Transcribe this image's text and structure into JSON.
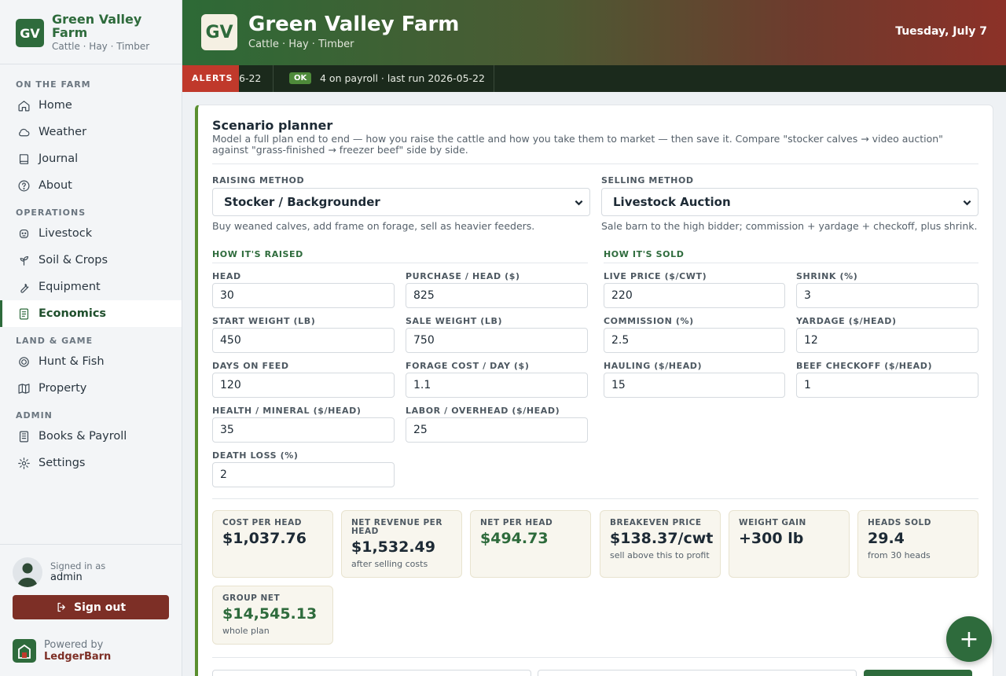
{
  "sidebar": {
    "brand": {
      "logo": "GV",
      "name": "Green Valley Farm",
      "subtitle": "Cattle · Hay · Timber"
    },
    "sections": [
      {
        "heading": "ON THE FARM",
        "items": [
          {
            "label": "Home",
            "icon": "home-icon"
          },
          {
            "label": "Weather",
            "icon": "cloud-icon"
          },
          {
            "label": "Journal",
            "icon": "book-icon"
          },
          {
            "label": "About",
            "icon": "help-circle-icon"
          }
        ]
      },
      {
        "heading": "OPERATIONS",
        "items": [
          {
            "label": "Livestock",
            "icon": "cow-icon"
          },
          {
            "label": "Soil & Crops",
            "icon": "sprout-icon"
          },
          {
            "label": "Equipment",
            "icon": "wrench-icon"
          },
          {
            "label": "Economics",
            "icon": "ledger-icon",
            "active": true
          }
        ]
      },
      {
        "heading": "LAND & GAME",
        "items": [
          {
            "label": "Hunt & Fish",
            "icon": "target-icon"
          },
          {
            "label": "Property",
            "icon": "map-icon"
          }
        ]
      },
      {
        "heading": "ADMIN",
        "items": [
          {
            "label": "Books & Payroll",
            "icon": "books-icon"
          },
          {
            "label": "Settings",
            "icon": "gear-icon"
          }
        ]
      }
    ],
    "user": {
      "signed_label": "Signed in as",
      "username": "admin",
      "signout_label": "Sign out"
    },
    "powered": {
      "label": "Powered by",
      "name": "LedgerBarn"
    }
  },
  "header": {
    "logo": "GV",
    "title": "Green Valley Farm",
    "subtitle": "Cattle · Hay · Timber",
    "date": "Tuesday, July 7"
  },
  "ticker": {
    "alerts_label": "ALERTS",
    "partial_text": "6-22",
    "badge": "OK",
    "message": "4 on payroll · last run 2026-05-22"
  },
  "planner": {
    "title": "Scenario planner",
    "description": "Model a full plan end to end — how you raise the cattle and how you take them to market — then save it. Compare \"stocker calves → video auction\" against \"grass-finished → freezer beef\" side by side.",
    "raising": {
      "label": "RAISING METHOD",
      "value": "Stocker / Backgrounder",
      "help": "Buy weaned calves, add frame on forage, sell as heavier feeders."
    },
    "selling": {
      "label": "SELLING METHOD",
      "value": "Livestock Auction",
      "help": "Sale barn to the high bidder; commission + yardage + checkoff, plus shrink."
    },
    "raised_heading": "HOW IT'S RAISED",
    "sold_heading": "HOW IT'S SOLD",
    "fields": [
      {
        "label": "HEAD",
        "value": "30"
      },
      {
        "label": "PURCHASE / HEAD ($)",
        "value": "825"
      },
      {
        "label": "LIVE PRICE ($/CWT)",
        "value": "220"
      },
      {
        "label": "SHRINK (%)",
        "value": "3"
      },
      {
        "label": "START WEIGHT (LB)",
        "value": "450"
      },
      {
        "label": "SALE WEIGHT (LB)",
        "value": "750"
      },
      {
        "label": "COMMISSION (%)",
        "value": "2.5"
      },
      {
        "label": "YARDAGE ($/HEAD)",
        "value": "12"
      },
      {
        "label": "DAYS ON FEED",
        "value": "120"
      },
      {
        "label": "FORAGE COST / DAY ($)",
        "value": "1.1"
      },
      {
        "label": "HAULING ($/HEAD)",
        "value": "15"
      },
      {
        "label": "BEEF CHECKOFF ($/HEAD)",
        "value": "1"
      },
      {
        "label": "HEALTH / MINERAL ($/HEAD)",
        "value": "35"
      },
      {
        "label": "LABOR / OVERHEAD ($/HEAD)",
        "value": "25"
      },
      {
        "label": "DEATH LOSS (%)",
        "value": "2"
      }
    ],
    "stats": [
      {
        "label": "COST PER HEAD",
        "value": "$1,037.76",
        "note": ""
      },
      {
        "label": "NET REVENUE PER HEAD",
        "value": "$1,532.49",
        "note": "after selling costs"
      },
      {
        "label": "NET PER HEAD",
        "value": "$494.73",
        "note": "",
        "positive": true
      },
      {
        "label": "BREAKEVEN PRICE",
        "value": "$138.37/cwt",
        "note": "sell above this to profit"
      },
      {
        "label": "WEIGHT GAIN",
        "value": "+300 lb",
        "note": ""
      },
      {
        "label": "HEADS SOLD",
        "value": "29.4",
        "note": "from 30 heads"
      },
      {
        "label": "GROUP NET",
        "value": "$14,545.13",
        "note": "whole plan",
        "positive": true
      }
    ]
  },
  "fab": {
    "label": "+"
  },
  "colors": {
    "brand": "#2e6b3c",
    "signout": "#7d2f26",
    "alert": "#c0392b",
    "accent_border": "#5a8f2f"
  }
}
